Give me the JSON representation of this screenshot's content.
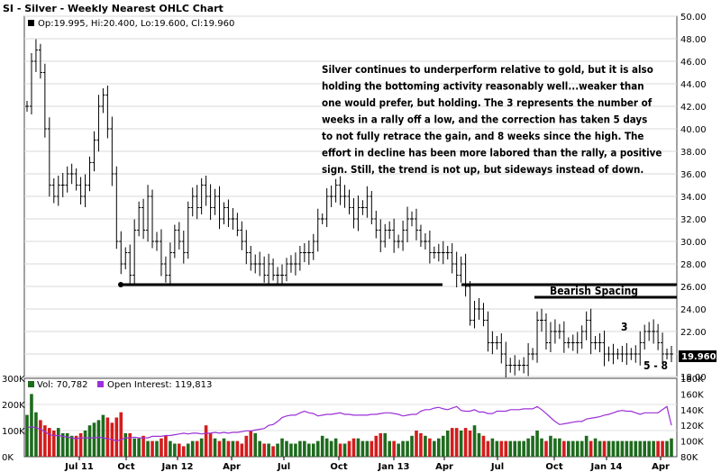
{
  "header": {
    "title": "SI - Silver - Weekly Nearest OHLC Chart",
    "ohlc": "Op:19.995, Hi:20.400, Lo:19.600, Cl:19.960",
    "last_price": "19.960"
  },
  "volume_panel": {
    "vol_label": "Vol: 70,782",
    "oi_label": "Open Interest: 119,813",
    "left_ticks": [
      "300K",
      "200K",
      "100K",
      "0K"
    ],
    "right_ticks": [
      "180K",
      "160K",
      "140K",
      "120K",
      "100K",
      "80K"
    ]
  },
  "annotations": {
    "commentary": [
      "Silver continues to underperform relative to gold, but it is also",
      "holding the bottoming activity reasonably well...weaker than",
      "one would prefer, but holding.  The 3 represents the number of",
      "weeks in a rally off a low, and the correction has taken 5 days",
      "to not fully retrace the gain, and 8 weeks since the high.  The",
      "effort in decline has been more labored than the rally, a positive",
      "sign.  Still, the trend is not up, but sideways instead of down."
    ],
    "bearish_spacing": "Bearish Spacing",
    "three": "3",
    "five_eight": "5 - 8"
  },
  "colors": {
    "up_volume": "#1e6b1e",
    "down_volume": "#d41c1c",
    "open_interest": "#9b30d8",
    "price_bars": "#000000",
    "swatch_vol": "#1e6b1e",
    "swatch_oi": "#9b30d8"
  },
  "chart_data": {
    "type": "ohlc",
    "title": "SI - Silver - Weekly Nearest OHLC Chart",
    "price_axis": {
      "min": 18,
      "max": 50,
      "ticks": [
        18,
        20,
        22,
        24,
        26,
        28,
        30,
        32,
        34,
        36,
        38,
        40,
        42,
        44,
        46,
        48,
        50
      ]
    },
    "x_ticks": [
      "Jul 11",
      "Oct",
      "Jan 12",
      "Apr",
      "Jul",
      "Oct",
      "Jan 13",
      "Apr",
      "Jul",
      "Oct",
      "Jan 14",
      "Apr"
    ],
    "support_levels": [
      26.0,
      26.0,
      25.0
    ],
    "weekly_close": [
      42,
      46,
      47,
      45,
      40,
      35,
      34,
      35,
      35,
      36,
      36,
      35,
      34,
      35,
      37,
      39,
      42,
      43,
      40,
      36,
      30,
      28,
      29,
      27,
      31,
      33,
      31,
      34,
      30,
      30,
      28,
      27,
      29,
      31,
      30,
      29,
      33,
      34,
      33,
      35,
      34,
      33,
      34,
      32,
      33,
      32,
      32,
      31,
      30,
      29,
      28,
      28,
      28,
      27,
      28,
      27,
      27,
      27,
      28,
      28,
      28,
      29,
      29,
      29,
      30,
      32,
      32,
      34,
      34,
      35,
      34,
      34,
      33,
      32,
      33,
      33,
      34,
      32,
      31,
      30,
      31,
      31,
      30,
      30,
      31,
      32,
      32,
      31,
      30,
      30,
      29,
      29,
      29,
      29,
      29,
      28,
      27,
      28,
      26,
      23,
      24,
      24,
      23,
      21,
      21,
      21,
      20,
      19,
      19,
      19,
      19,
      19,
      20,
      20,
      23,
      23,
      21,
      22,
      22,
      22,
      21,
      21,
      21,
      21,
      22,
      23,
      21,
      21,
      21,
      20,
      20,
      20,
      20,
      20,
      20,
      20,
      20,
      21,
      22,
      22,
      22,
      21,
      20,
      20,
      20
    ],
    "volume_thousands": [
      160,
      240,
      170,
      140,
      120,
      110,
      100,
      110,
      90,
      90,
      80,
      80,
      90,
      100,
      120,
      130,
      140,
      160,
      150,
      130,
      150,
      170,
      90,
      90,
      70,
      70,
      80,
      60,
      60,
      60,
      70,
      80,
      60,
      50,
      50,
      40,
      50,
      60,
      60,
      70,
      120,
      90,
      70,
      60,
      70,
      60,
      60,
      60,
      50,
      80,
      100,
      90,
      60,
      50,
      50,
      40,
      50,
      70,
      60,
      50,
      50,
      60,
      60,
      50,
      50,
      60,
      80,
      70,
      60,
      70,
      50,
      50,
      60,
      70,
      70,
      60,
      60,
      60,
      80,
      90,
      90,
      60,
      60,
      50,
      60,
      60,
      80,
      100,
      90,
      80,
      70,
      60,
      70,
      80,
      100,
      110,
      110,
      100,
      110,
      100,
      120,
      90,
      80,
      60,
      70,
      60,
      60,
      60,
      60,
      60,
      60,
      60,
      70,
      80,
      100,
      70,
      60,
      80,
      70,
      70,
      60,
      60,
      60,
      60,
      60,
      80,
      60,
      70,
      60,
      60,
      60,
      60,
      60,
      60,
      60,
      60,
      60,
      60,
      60,
      60,
      60,
      60,
      60,
      60,
      70
    ],
    "open_interest_thousands": [
      117,
      118,
      117,
      115,
      112,
      108,
      107,
      107,
      106,
      105,
      104,
      103,
      104,
      104,
      104,
      104,
      105,
      104,
      103,
      102,
      100,
      102,
      104,
      104,
      105,
      104,
      104,
      104,
      106,
      106,
      106,
      107,
      107,
      108,
      109,
      110,
      109,
      110,
      110,
      109,
      110,
      110,
      111,
      110,
      111,
      110,
      111,
      111,
      112,
      113,
      113,
      114,
      115,
      116,
      120,
      121,
      125,
      130,
      132,
      133,
      133,
      136,
      138,
      136,
      135,
      132,
      133,
      134,
      134,
      135,
      136,
      134,
      134,
      133,
      133,
      133,
      133,
      134,
      134,
      135,
      136,
      136,
      135,
      134,
      132,
      133,
      134,
      134,
      138,
      140,
      140,
      142,
      143,
      141,
      140,
      142,
      144,
      139,
      138,
      138,
      140,
      137,
      137,
      135,
      135,
      138,
      138,
      138,
      140,
      140,
      140,
      141,
      141,
      141,
      144,
      140,
      135,
      130,
      125,
      121,
      122,
      123,
      124,
      125,
      125,
      128,
      129,
      130,
      131,
      133,
      134,
      136,
      138,
      139,
      138,
      138,
      136,
      134,
      136,
      136,
      136,
      136,
      140,
      144,
      120
    ]
  }
}
